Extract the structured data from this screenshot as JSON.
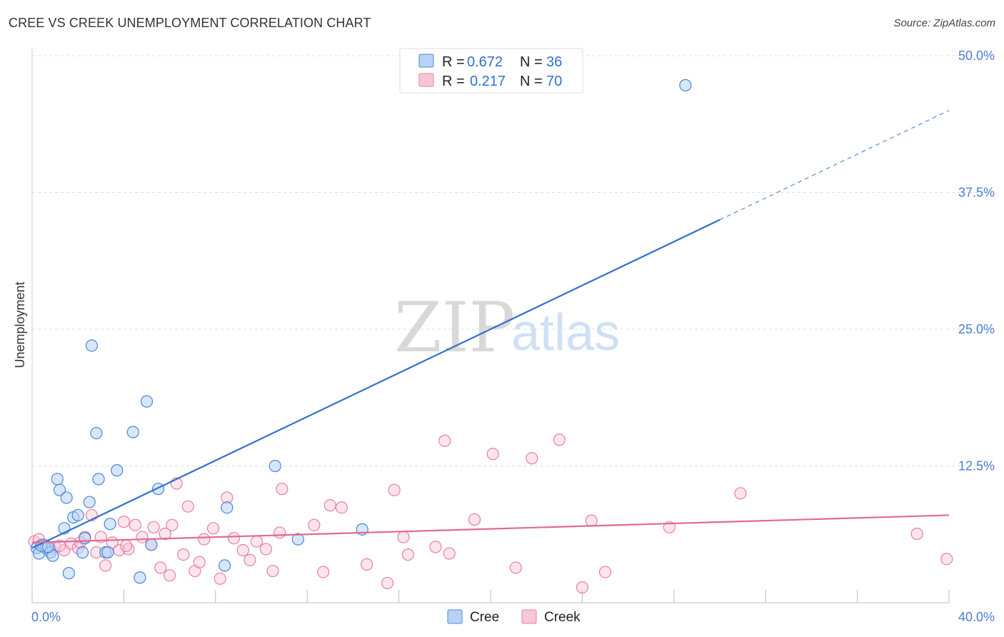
{
  "header": {
    "title": "CREE VS CREEK UNEMPLOYMENT CORRELATION CHART",
    "source": "Source: ZipAtlas.com"
  },
  "watermark": {
    "zip": "ZIP",
    "atlas": "atlas"
  },
  "legend": {
    "r_label": "R =",
    "n_label": "N =",
    "entries": [
      {
        "name": "Cree",
        "r": "0.672",
        "n": "36",
        "fill": "#b8d2f5",
        "stroke": "#4a86d8"
      },
      {
        "name": "Creek",
        "r": "0.217",
        "n": "70",
        "fill": "#f9c6d6",
        "stroke": "#e87fa0"
      }
    ]
  },
  "chart_data": {
    "type": "scatter",
    "title": "CREE VS CREEK UNEMPLOYMENT CORRELATION CHART",
    "xlabel": "",
    "ylabel": "Unemployment",
    "xlim": [
      0,
      40
    ],
    "ylim": [
      0,
      50
    ],
    "x_tick_labels": [
      "0.0%",
      "40.0%"
    ],
    "y_ticks": [
      12.5,
      25.0,
      37.5,
      50.0
    ],
    "y_tick_labels": [
      "12.5%",
      "25.0%",
      "37.5%",
      "50.0%"
    ],
    "grid": true,
    "series": [
      {
        "name": "Cree",
        "color": "#2f6fd0",
        "points": [
          [
            0.2,
            5.0
          ],
          [
            0.3,
            4.5
          ],
          [
            0.5,
            5.3
          ],
          [
            0.6,
            5.0
          ],
          [
            0.8,
            4.6
          ],
          [
            0.9,
            4.3
          ],
          [
            1.1,
            11.3
          ],
          [
            1.2,
            10.3
          ],
          [
            1.4,
            6.8
          ],
          [
            1.5,
            9.6
          ],
          [
            1.6,
            2.7
          ],
          [
            1.8,
            7.8
          ],
          [
            2.0,
            8.0
          ],
          [
            2.2,
            4.6
          ],
          [
            2.3,
            5.9
          ],
          [
            2.5,
            9.2
          ],
          [
            2.6,
            23.5
          ],
          [
            2.8,
            15.5
          ],
          [
            2.9,
            11.3
          ],
          [
            3.2,
            4.6
          ],
          [
            3.3,
            4.6
          ],
          [
            3.4,
            7.2
          ],
          [
            3.7,
            12.1
          ],
          [
            4.4,
            15.6
          ],
          [
            4.7,
            2.3
          ],
          [
            5.0,
            18.4
          ],
          [
            5.2,
            5.3
          ],
          [
            5.5,
            10.4
          ],
          [
            8.5,
            8.7
          ],
          [
            8.4,
            3.4
          ],
          [
            10.6,
            12.5
          ],
          [
            11.6,
            5.8
          ],
          [
            14.4,
            6.7
          ],
          [
            28.5,
            47.3
          ],
          [
            0.4,
            5.2
          ],
          [
            0.7,
            5.1
          ]
        ],
        "trend": {
          "x": [
            0.0,
            30.0
          ],
          "y": [
            5.0,
            35.0
          ],
          "dashed_to": [
            40.0,
            45.0
          ]
        }
      },
      {
        "name": "Creek",
        "color": "#e06a92",
        "points": [
          [
            0.1,
            5.6
          ],
          [
            0.4,
            5.3
          ],
          [
            0.6,
            5.0
          ],
          [
            1.0,
            5.1
          ],
          [
            1.4,
            4.8
          ],
          [
            1.7,
            5.4
          ],
          [
            2.0,
            5.0
          ],
          [
            2.3,
            6.0
          ],
          [
            2.6,
            8.0
          ],
          [
            2.8,
            4.6
          ],
          [
            3.0,
            6.0
          ],
          [
            3.2,
            3.4
          ],
          [
            3.5,
            5.5
          ],
          [
            3.8,
            4.8
          ],
          [
            4.0,
            7.4
          ],
          [
            4.2,
            4.9
          ],
          [
            4.5,
            7.1
          ],
          [
            4.8,
            6.0
          ],
          [
            5.2,
            5.3
          ],
          [
            5.3,
            6.9
          ],
          [
            5.6,
            3.2
          ],
          [
            5.8,
            6.3
          ],
          [
            6.0,
            2.5
          ],
          [
            6.1,
            7.1
          ],
          [
            6.3,
            10.9
          ],
          [
            6.6,
            4.4
          ],
          [
            6.8,
            8.8
          ],
          [
            7.1,
            2.9
          ],
          [
            7.3,
            3.7
          ],
          [
            7.5,
            5.8
          ],
          [
            7.9,
            6.8
          ],
          [
            8.2,
            2.2
          ],
          [
            8.5,
            9.6
          ],
          [
            8.8,
            5.9
          ],
          [
            9.2,
            4.8
          ],
          [
            9.5,
            3.9
          ],
          [
            9.8,
            5.6
          ],
          [
            10.2,
            4.9
          ],
          [
            10.5,
            2.9
          ],
          [
            10.8,
            6.4
          ],
          [
            10.9,
            10.4
          ],
          [
            12.3,
            7.1
          ],
          [
            12.7,
            2.8
          ],
          [
            13.0,
            8.9
          ],
          [
            13.5,
            8.7
          ],
          [
            14.6,
            3.5
          ],
          [
            15.5,
            1.8
          ],
          [
            15.8,
            10.3
          ],
          [
            16.2,
            6.0
          ],
          [
            16.4,
            4.4
          ],
          [
            17.6,
            5.1
          ],
          [
            18.0,
            14.8
          ],
          [
            18.2,
            4.5
          ],
          [
            19.3,
            7.6
          ],
          [
            20.1,
            13.6
          ],
          [
            21.1,
            3.2
          ],
          [
            21.8,
            13.2
          ],
          [
            23.0,
            14.9
          ],
          [
            24.0,
            1.4
          ],
          [
            24.4,
            7.5
          ],
          [
            25.0,
            2.8
          ],
          [
            27.8,
            6.9
          ],
          [
            30.9,
            10.0
          ],
          [
            38.6,
            6.3
          ],
          [
            39.9,
            4.0
          ],
          [
            0.8,
            4.9
          ],
          [
            1.2,
            5.2
          ],
          [
            2.1,
            5.5
          ],
          [
            4.1,
            5.2
          ],
          [
            0.3,
            5.8
          ]
        ],
        "trend": {
          "x": [
            0.0,
            40.0
          ],
          "y": [
            5.5,
            8.0
          ]
        }
      }
    ]
  }
}
